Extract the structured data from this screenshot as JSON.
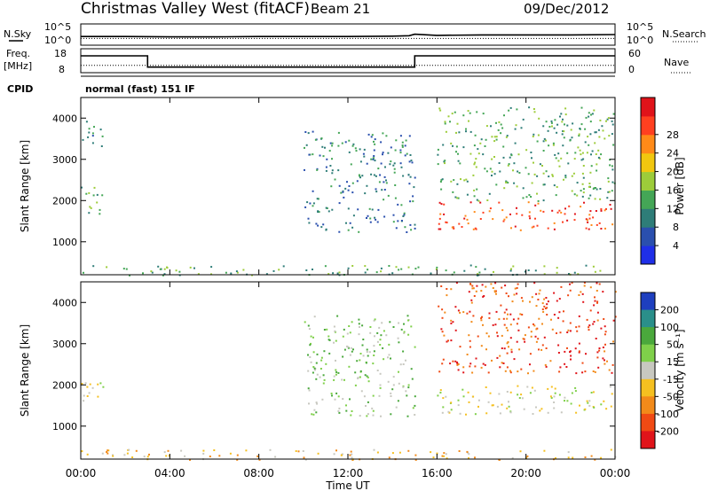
{
  "header": {
    "station": "Christmas Valley West (fitACF)",
    "beam": "Beam 21",
    "date": "09/Dec/2012"
  },
  "nsky_panel": {
    "left_label": "N.Sky",
    "left_ticks": [
      "10^5",
      "10^0"
    ],
    "right_ticks": [
      "10^5",
      "10^0"
    ],
    "right_label": "N.Search",
    "right_label_style": "dotted"
  },
  "freq_panel": {
    "left_label_line1": "Freq.",
    "left_label_line2": "[MHz]",
    "left_ticks": [
      "18",
      "8"
    ],
    "right_ticks": [
      "60",
      "0"
    ],
    "right_label": "Nave",
    "right_label_style": "dotted"
  },
  "cpid": {
    "label": "CPID",
    "value": "normal (fast) 151 IF"
  },
  "chart_data": [
    {
      "type": "line",
      "title": "",
      "ylabel": "N.Sky",
      "x": [
        "00:00",
        "02:00",
        "04:00",
        "06:00",
        "08:00",
        "10:00",
        "12:00",
        "14:00",
        "14:45",
        "15:00",
        "16:00",
        "18:00",
        "20:00",
        "22:00",
        "24:00"
      ],
      "series": [
        {
          "name": "N.Sky",
          "values": [
            2.0,
            2.0,
            1.9,
            1.9,
            2.0,
            2.0,
            2.0,
            2.1,
            2.2,
            2.6,
            2.3,
            2.4,
            2.4,
            2.4,
            2.5
          ]
        },
        {
          "name": "N.Search",
          "values": [
            1.5,
            1.5,
            1.5,
            1.5,
            1.5,
            1.5,
            1.5,
            1.5,
            1.5,
            1.5,
            1.5,
            1.5,
            1.5,
            1.5,
            1.5
          ]
        }
      ],
      "scale": "log",
      "ylim": [
        "10^0",
        "10^5"
      ]
    },
    {
      "type": "line",
      "ylabel": "Freq. [MHz]",
      "x": [
        "00:00",
        "03:00",
        "03:00",
        "15:00",
        "15:00",
        "24:00"
      ],
      "series": [
        {
          "name": "Freq.",
          "values": [
            15.5,
            15.5,
            10.2,
            10.2,
            15.5,
            15.5
          ]
        },
        {
          "name": "Nave",
          "values": [
            18,
            18,
            18,
            18,
            18,
            18
          ]
        }
      ],
      "ylim": [
        8,
        18
      ],
      "y2lim": [
        0,
        60
      ]
    },
    {
      "type": "heatmap",
      "ylabel": "Slant Range [km]",
      "xlabel": "",
      "x_ticks": [
        "00:00",
        "04:00",
        "08:00",
        "12:00",
        "16:00",
        "20:00",
        "00:00"
      ],
      "y_ticks": [
        1000,
        2000,
        3000,
        4000
      ],
      "ylim": [
        200,
        4500
      ],
      "colorbar": {
        "label": "Power [dB]",
        "ticks": [
          "4",
          "8",
          "12",
          "16",
          "20",
          "24",
          "28"
        ],
        "colors": [
          "#1f2fe8",
          "#2a4fae",
          "#2e7d78",
          "#44a656",
          "#9dcc3a",
          "#f1c70f",
          "#ff8a18",
          "#ff4020",
          "#e0131a"
        ]
      },
      "echo_regions": [
        {
          "t_start": "00:00",
          "t_end": "01:00",
          "range_km": [
            1600,
            2400
          ],
          "power_db": 12
        },
        {
          "t_start": "00:00",
          "t_end": "01:00",
          "range_km": [
            3300,
            4000
          ],
          "power_db": 8
        },
        {
          "t_start": "10:00",
          "t_end": "15:00",
          "range_km": [
            1250,
            3700
          ],
          "power_db": 6
        },
        {
          "t_start": "16:00",
          "t_end": "24:00",
          "range_km": [
            1300,
            2000
          ],
          "power_db": 26
        },
        {
          "t_start": "16:00",
          "t_end": "24:00",
          "range_km": [
            2000,
            4300
          ],
          "power_db": 10
        },
        {
          "t_start": "00:00",
          "t_end": "24:00",
          "range_km": [
            200,
            450
          ],
          "power_db": 10
        }
      ]
    },
    {
      "type": "heatmap",
      "ylabel": "Slant Range [km]",
      "xlabel": "Time UT",
      "x_ticks": [
        "00:00",
        "04:00",
        "08:00",
        "12:00",
        "16:00",
        "20:00",
        "00:00"
      ],
      "y_ticks": [
        1000,
        2000,
        3000,
        4000
      ],
      "ylim": [
        200,
        4500
      ],
      "colorbar": {
        "label": "Velocity [m s⁻¹]",
        "ticks": [
          "200",
          "100",
          "50",
          "15",
          "-15",
          "-50",
          "-100",
          "-200"
        ],
        "colors": [
          "#1e3fbf",
          "#2a8f8a",
          "#4aa83c",
          "#7fd04a",
          "#c8c8c0",
          "#f5c020",
          "#f28a1a",
          "#f04a14",
          "#e0141a"
        ]
      },
      "echo_regions": [
        {
          "t_start": "00:00",
          "t_end": "01:00",
          "range_km": [
            1600,
            2400
          ],
          "velocity_ms": 0
        },
        {
          "t_start": "10:00",
          "t_end": "15:00",
          "range_km": [
            1250,
            3700
          ],
          "velocity_ms": 30
        },
        {
          "t_start": "16:00",
          "t_end": "24:00",
          "range_km": [
            1300,
            2000
          ],
          "velocity_ms": 0
        },
        {
          "t_start": "16:00",
          "t_end": "24:00",
          "range_km": [
            2300,
            4500
          ],
          "velocity_ms": -120
        },
        {
          "t_start": "00:00",
          "t_end": "24:00",
          "range_km": [
            200,
            450
          ],
          "velocity_ms": -30
        }
      ]
    }
  ]
}
